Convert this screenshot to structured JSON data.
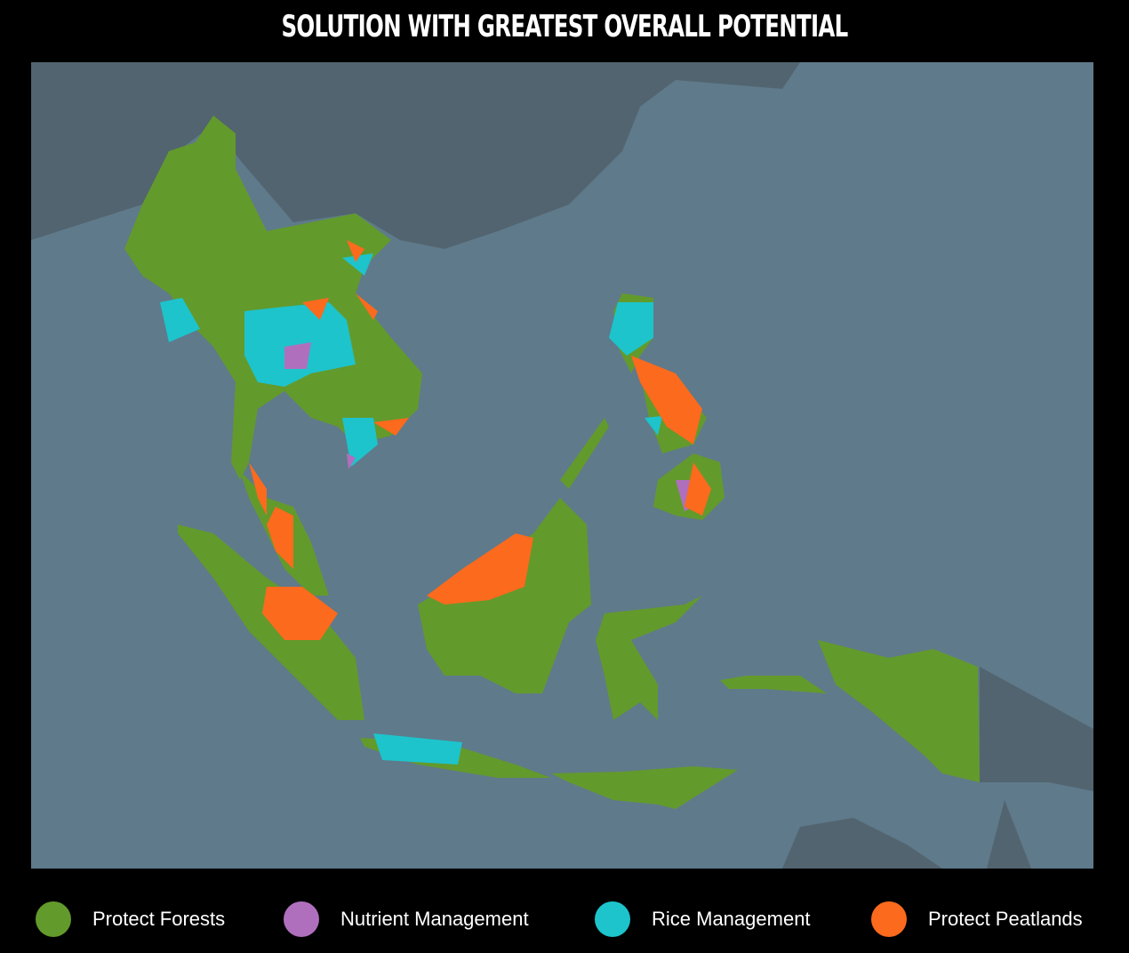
{
  "title": "SOLUTION WITH GREATEST OVERALL POTENTIAL",
  "colors": {
    "sea": "#5f7a8b",
    "land_other": "#52646f",
    "protect_forests": "#639a2c",
    "nutrient_management": "#b06fbd",
    "rice_management": "#1dc4cc",
    "protect_peatlands": "#fb6a1d"
  },
  "legend": [
    {
      "label": "Protect Forests",
      "color": "#639a2c"
    },
    {
      "label": "Nutrient Management",
      "color": "#b06fbd"
    },
    {
      "label": "Rice Management",
      "color": "#1dc4cc"
    },
    {
      "label": "Protect Peatlands",
      "color": "#fb6a1d"
    }
  ]
}
